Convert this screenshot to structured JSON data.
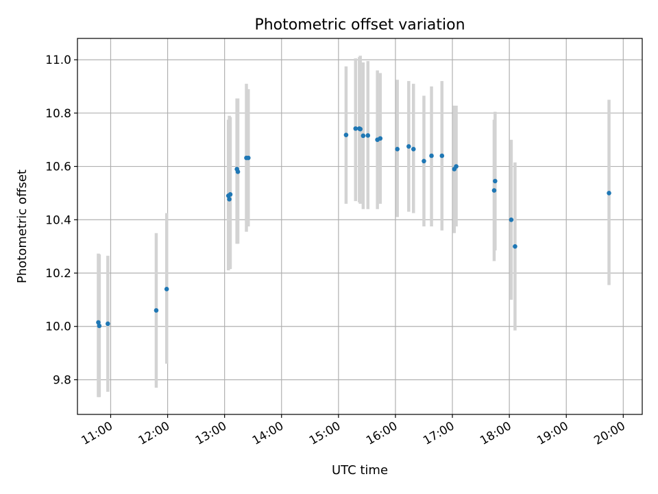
{
  "chart_data": {
    "type": "scatter",
    "title": "Photometric offset variation",
    "xlabel": "UTC time",
    "ylabel": "Photometric offset",
    "xlim": [
      "10:25",
      "20:20"
    ],
    "ylim": [
      9.67,
      11.08
    ],
    "x_ticks": [
      "11:00",
      "12:00",
      "13:00",
      "14:00",
      "15:00",
      "16:00",
      "17:00",
      "18:00",
      "19:00",
      "20:00"
    ],
    "y_ticks": [
      "9.8",
      "10.0",
      "10.2",
      "10.4",
      "10.6",
      "10.8",
      "11.0"
    ],
    "grid": true,
    "colors": {
      "point": "#1f77b4",
      "errorbar": "#d3d3d3",
      "grid": "#b0b0b0"
    },
    "series": [
      {
        "points": [
          {
            "x": "10:47",
            "y": 10.015,
            "err_low": 9.735,
            "err_high": 10.273
          },
          {
            "x": "10:48",
            "y": 10.002,
            "err_low": 9.735,
            "err_high": 10.27
          },
          {
            "x": "10:57",
            "y": 10.01,
            "err_low": 9.755,
            "err_high": 10.265
          },
          {
            "x": "11:48",
            "y": 10.06,
            "err_low": 9.77,
            "err_high": 10.35
          },
          {
            "x": "11:59",
            "y": 10.14,
            "err_low": 9.86,
            "err_high": 10.425
          },
          {
            "x": "13:04",
            "y": 10.49,
            "err_low": 10.21,
            "err_high": 10.775
          },
          {
            "x": "13:05",
            "y": 10.477,
            "err_low": 10.215,
            "err_high": 10.79
          },
          {
            "x": "13:06",
            "y": 10.495,
            "err_low": 10.215,
            "err_high": 10.785
          },
          {
            "x": "13:13",
            "y": 10.59,
            "err_low": 10.31,
            "err_high": 10.855
          },
          {
            "x": "13:14",
            "y": 10.58,
            "err_low": 10.31,
            "err_high": 10.855
          },
          {
            "x": "13:23",
            "y": 10.632,
            "err_low": 10.355,
            "err_high": 10.91
          },
          {
            "x": "13:25",
            "y": 10.632,
            "err_low": 10.375,
            "err_high": 10.89
          },
          {
            "x": "15:08",
            "y": 10.718,
            "err_low": 10.46,
            "err_high": 10.975
          },
          {
            "x": "15:18",
            "y": 10.742,
            "err_low": 10.47,
            "err_high": 11.005
          },
          {
            "x": "15:22",
            "y": 10.742,
            "err_low": 10.465,
            "err_high": 11.01
          },
          {
            "x": "15:23",
            "y": 10.74,
            "err_low": 10.46,
            "err_high": 11.015
          },
          {
            "x": "15:26",
            "y": 10.715,
            "err_low": 10.44,
            "err_high": 10.99
          },
          {
            "x": "15:31",
            "y": 10.716,
            "err_low": 10.44,
            "err_high": 10.995
          },
          {
            "x": "15:41",
            "y": 10.7,
            "err_low": 10.44,
            "err_high": 10.96
          },
          {
            "x": "15:44",
            "y": 10.705,
            "err_low": 10.46,
            "err_high": 10.95
          },
          {
            "x": "16:02",
            "y": 10.665,
            "err_low": 10.41,
            "err_high": 10.925
          },
          {
            "x": "16:14",
            "y": 10.675,
            "err_low": 10.43,
            "err_high": 10.92
          },
          {
            "x": "16:19",
            "y": 10.665,
            "err_low": 10.425,
            "err_high": 10.91
          },
          {
            "x": "16:30",
            "y": 10.62,
            "err_low": 10.375,
            "err_high": 10.865
          },
          {
            "x": "16:38",
            "y": 10.64,
            "err_low": 10.375,
            "err_high": 10.9
          },
          {
            "x": "16:49",
            "y": 10.64,
            "err_low": 10.36,
            "err_high": 10.92
          },
          {
            "x": "17:02",
            "y": 10.59,
            "err_low": 10.35,
            "err_high": 10.828
          },
          {
            "x": "17:04",
            "y": 10.6,
            "err_low": 10.375,
            "err_high": 10.828
          },
          {
            "x": "17:44",
            "y": 10.51,
            "err_low": 10.245,
            "err_high": 10.775
          },
          {
            "x": "17:45",
            "y": 10.545,
            "err_low": 10.285,
            "err_high": 10.805
          },
          {
            "x": "18:02",
            "y": 10.4,
            "err_low": 10.1,
            "err_high": 10.7
          },
          {
            "x": "18:06",
            "y": 10.3,
            "err_low": 9.985,
            "err_high": 10.615
          },
          {
            "x": "19:45",
            "y": 10.5,
            "err_low": 10.155,
            "err_high": 10.85
          }
        ]
      }
    ]
  }
}
